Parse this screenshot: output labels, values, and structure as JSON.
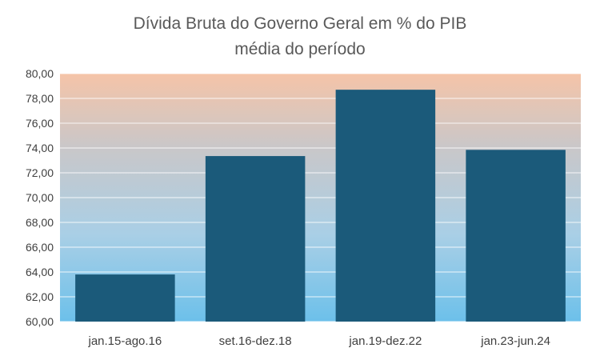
{
  "chart_data": {
    "type": "bar",
    "title": "Dívida Bruta do Governo Geral em % do PIB",
    "subtitle": "média do período",
    "categories": [
      "jan.15-ago.16",
      "set.16-dez.18",
      "jan.19-dez.22",
      "jan.23-jun.24"
    ],
    "values": [
      63.8,
      73.35,
      78.7,
      73.85
    ],
    "ylim": [
      60,
      80
    ],
    "yticks": [
      "60,00",
      "62,00",
      "64,00",
      "66,00",
      "68,00",
      "70,00",
      "72,00",
      "74,00",
      "76,00",
      "78,00",
      "80,00"
    ],
    "xlabel": "",
    "ylabel": "",
    "grid": true,
    "bar_color": "#1b5a7a",
    "background_gradient": [
      "#f5c4a8",
      "#c9c7c9",
      "#a9cfe6",
      "#6cc0ea"
    ]
  }
}
